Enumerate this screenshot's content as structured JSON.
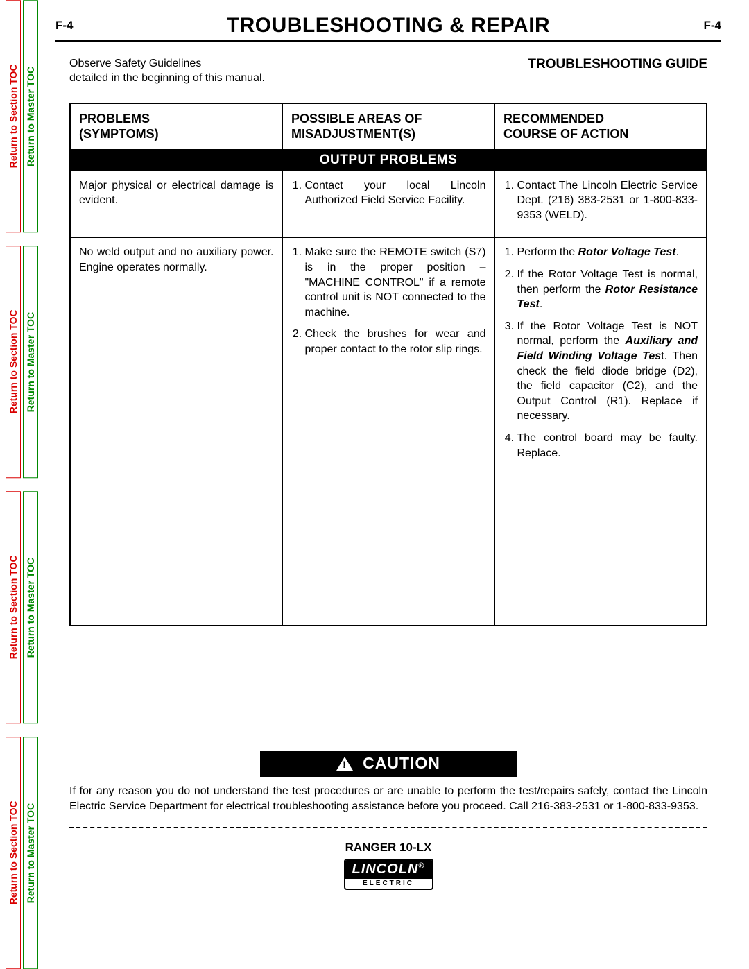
{
  "page_code": "F-4",
  "main_title": "TROUBLESHOOTING & REPAIR",
  "safety_note_line1": "Observe Safety Guidelines",
  "safety_note_line2": "detailed in the beginning of this manual.",
  "guide_title": "TROUBLESHOOTING GUIDE",
  "side_tabs": {
    "section": "Return to Section TOC",
    "master": "Return to Master TOC"
  },
  "table": {
    "headers": {
      "col1_l1": "PROBLEMS",
      "col1_l2": "(SYMPTOMS)",
      "col2_l1": "POSSIBLE AREAS OF",
      "col2_l2": "MISADJUSTMENT(S)",
      "col3_l1": "RECOMMENDED",
      "col3_l2": "COURSE OF ACTION"
    },
    "section_band": "OUTPUT PROBLEMS",
    "row1": {
      "problem": "Major physical or electrical damage is evident.",
      "misadjust_1": "Contact your local Lincoln Authorized Field Service Facility.",
      "action_1": "Contact The Lincoln Electric Service Dept. (216) 383-2531 or 1-800-833-9353 (WELD)."
    },
    "row2": {
      "problem": "No weld output and no auxiliary power.  Engine operates normally.",
      "misadjust_1": "Make sure the REMOTE switch (S7) is in the proper position – \"MACHINE CONTROL\" if a remote control unit is NOT connected to the machine.",
      "misadjust_2": "Check the brushes for wear and proper contact to the rotor slip rings.",
      "action_1_pre": "Perform the ",
      "action_1_bi": "Rotor Voltage Test",
      "action_1_post": ".",
      "action_2_pre": "If the Rotor Voltage Test is normal, then perform the ",
      "action_2_bi": "Rotor Resistance Test",
      "action_2_post": ".",
      "action_3_pre": "If the Rotor Voltage Test is NOT normal, perform the ",
      "action_3_bi": "Auxiliary and Field Winding Voltage Tes",
      "action_3_post": "t.  Then check the field diode bridge (D2), the field capacitor (C2), and the Output Control (R1).  Replace if necessary.",
      "action_4": "The control board may be faulty.  Replace."
    }
  },
  "caution_label": "CAUTION",
  "caution_text": "If for any reason you do not understand the test procedures or are unable to perform the test/repairs safely, contact the Lincoln Electric Service Department for electrical troubleshooting assistance before you proceed.  Call 216-383-2531 or 1-800-833-9353.",
  "product": "RANGER 10-LX",
  "logo_top": "LINCOLN",
  "logo_reg": "®",
  "logo_bottom": "ELECTRIC",
  "colors": {
    "red": "#d90000",
    "green": "#008800",
    "black": "#000000",
    "white": "#ffffff"
  }
}
